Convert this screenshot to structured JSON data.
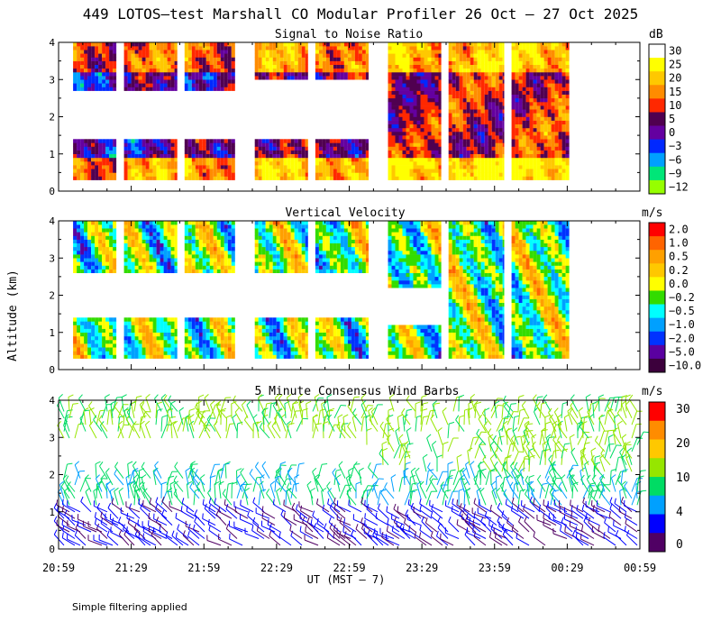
{
  "figure": {
    "title": "449 LOTOS—test Marshall CO Modular Profiler 26 Oct — 27 Oct 2025",
    "y_axis_label": "Altitude (km)",
    "x_axis_label": "UT  (MST — 7)",
    "footnote": "Simple filtering applied",
    "time_ticks": [
      "20:59",
      "21:29",
      "21:59",
      "22:29",
      "22:59",
      "23:29",
      "23:59",
      "00:29",
      "00:59"
    ],
    "altitude_ticks": [
      "0",
      "1",
      "2",
      "3",
      "4"
    ]
  },
  "chart_data": [
    {
      "type": "heatmap",
      "title": "Signal to Noise Ratio",
      "colorbar_unit": "dB",
      "colorbar_labels": [
        "30",
        "25",
        "20",
        "15",
        "10",
        "5",
        "0",
        "−3",
        "−6",
        "−9",
        "−12"
      ],
      "colorbar_colors": [
        "#ffffff",
        "#ffff00",
        "#ffc800",
        "#ff8c00",
        "#ff2800",
        "#500050",
        "#6400a0",
        "#0028ff",
        "#00a0ff",
        "#00e678",
        "#96ff00"
      ],
      "ylim": [
        0,
        4
      ],
      "x_range": [
        "20:59",
        "00:59"
      ],
      "segments": [
        {
          "start": "21:05",
          "end": "21:23"
        },
        {
          "start": "21:26",
          "end": "21:48"
        },
        {
          "start": "21:51",
          "end": "22:12"
        },
        {
          "start": "22:20",
          "end": "22:42"
        },
        {
          "start": "22:45",
          "end": "23:07"
        },
        {
          "start": "23:15",
          "end": "23:37"
        },
        {
          "start": "23:40",
          "end": "24:03"
        },
        {
          "start": "24:06",
          "end": "24:30"
        }
      ]
    },
    {
      "type": "heatmap",
      "title": "Vertical Velocity",
      "colorbar_unit": "m/s",
      "colorbar_labels": [
        "2.0",
        "1.0",
        "0.5",
        "0.2",
        "0.0",
        "−0.2",
        "−0.5",
        "−1.0",
        "−2.0",
        "−5.0",
        "−10.0"
      ],
      "colorbar_colors": [
        "#ff0000",
        "#ff6400",
        "#ffa000",
        "#ffc800",
        "#ffff00",
        "#32dc00",
        "#00ffff",
        "#00a0ff",
        "#0032ff",
        "#5a00a0",
        "#3c003c"
      ],
      "ylim": [
        0,
        4
      ],
      "x_range": [
        "20:59",
        "00:59"
      ]
    },
    {
      "type": "scatter",
      "title": "5 Minute Consensus Wind Barbs",
      "colorbar_unit": "m/s",
      "colorbar_labels": [
        "30",
        "20",
        "10",
        "4",
        "0"
      ],
      "colorbar_colors": [
        "#ff0000",
        "#ff8c00",
        "#ffc800",
        "#96e600",
        "#00dc64",
        "#00a0ff",
        "#0000ff",
        "#500064"
      ],
      "ylim": [
        0,
        4
      ],
      "x_range": [
        "20:59",
        "00:59"
      ]
    }
  ]
}
